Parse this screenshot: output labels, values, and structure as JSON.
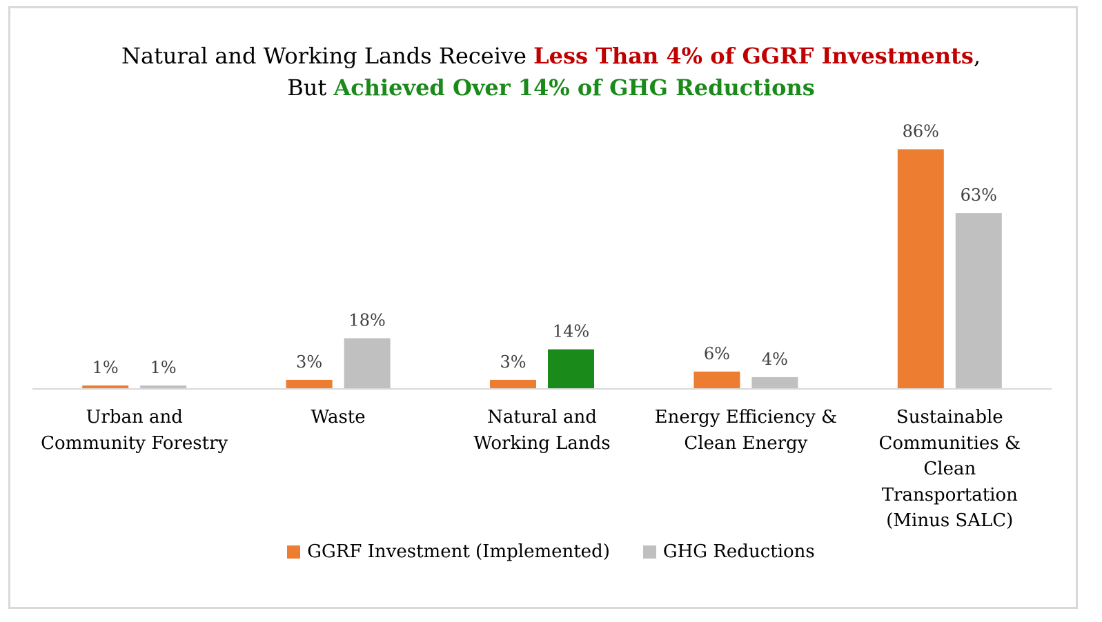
{
  "title": {
    "line1_prefix": "Natural and Working Lands Receive ",
    "line1_highlight": "Less Than 4% of GGRF Investments",
    "line1_suffix": ",",
    "line2_prefix": "But ",
    "line2_highlight": "Achieved Over 14% of GHG Reductions"
  },
  "colors": {
    "investment": "#ed7d31",
    "reductions": "#c0c0c0",
    "highlight_reductions": "#1a8a1a",
    "title_red": "#c00000",
    "title_green": "#1a8a1a",
    "axis": "#d9d9d9",
    "label_text": "#404040"
  },
  "chart_data": {
    "type": "bar",
    "title": "Natural and Working Lands Receive Less Than 4% of GGRF Investments, But Achieved Over 14% of GHG Reductions",
    "categories": [
      "Urban and Community Forestry",
      "Waste",
      "Natural and Working Lands",
      "Energy Efficiency & Clean Energy",
      "Sustainable Communities & Clean Transportation (Minus SALC)"
    ],
    "series": [
      {
        "name": "GGRF Investment (Implemented)",
        "values": [
          1,
          3,
          3,
          6,
          86
        ],
        "labels": [
          "1%",
          "3%",
          "3%",
          "6%",
          "86%"
        ]
      },
      {
        "name": "GHG Reductions",
        "values": [
          1,
          18,
          14,
          4,
          63
        ],
        "labels": [
          "1%",
          "18%",
          "14%",
          "4%",
          "63%"
        ]
      }
    ],
    "highlight": {
      "series": 1,
      "category": 2
    },
    "ylim": [
      0,
      100
    ],
    "grid": false,
    "legend_position": "bottom"
  },
  "category_display": [
    "Urban and\nCommunity Forestry",
    "Waste",
    "Natural and\nWorking Lands",
    "Energy Efficiency &\nClean Energy",
    "Sustainable\nCommunities &\nClean\nTransportation\n(Minus SALC)"
  ]
}
